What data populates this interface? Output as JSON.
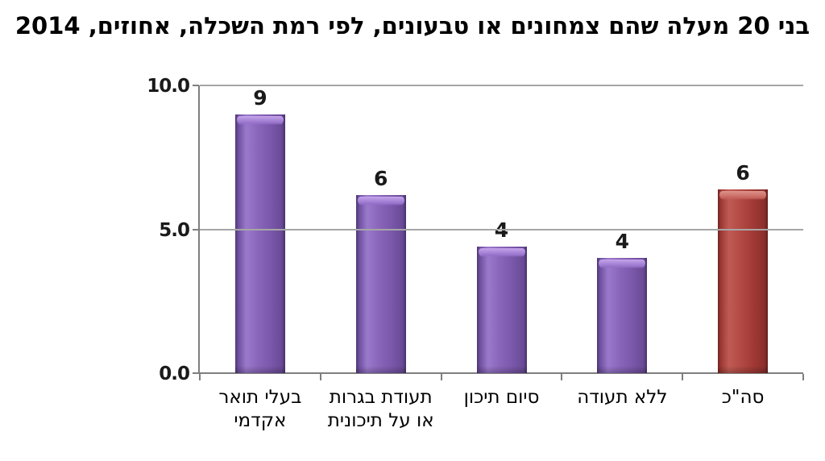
{
  "chart_data": {
    "type": "bar",
    "title": "בני 20 מעלה שהם צמחונים או טבעונים, לפי רמת השכלה, אחוזים, 2014",
    "direction": "rtl",
    "categories": [
      "סה\"כ",
      "ללא תעודה",
      "סיום תיכון",
      "תעודת בגרות או על תיכונית",
      "בעלי תואר אקדמי"
    ],
    "category_lines": [
      [
        "סה\"כ"
      ],
      [
        "ללא תעודה"
      ],
      [
        "סיום תיכון"
      ],
      [
        "תעודת בגרות",
        "או על תיכונית"
      ],
      [
        "בעלי תואר",
        "אקדמי"
      ]
    ],
    "values": [
      6.4,
      4.0,
      4.4,
      6.2,
      9.0
    ],
    "bar_labels": [
      "6",
      "4",
      "4",
      "6",
      "9"
    ],
    "bar_colors": [
      "#a84440",
      "#8663b4",
      "#8663b4",
      "#8663b4",
      "#8663b4"
    ],
    "ylim": [
      0,
      10
    ],
    "yticks": [
      {
        "value": 0,
        "label": "0.0"
      },
      {
        "value": 5,
        "label": "5.0"
      },
      {
        "value": 10,
        "label": "10.0"
      }
    ],
    "grid": true,
    "legend": "none"
  },
  "colors": {
    "background": "#ffffff",
    "bar_total_red": "#a84440",
    "bar_purple": "#8663b4",
    "axis": "#7f7f7f",
    "gridline": "#a6a6a6",
    "text": "#000000"
  }
}
